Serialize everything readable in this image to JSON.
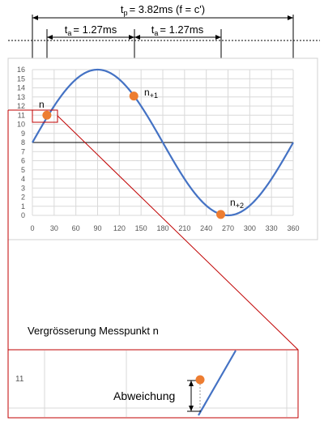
{
  "dimensions": {
    "period": {
      "symbol": "t",
      "subscript": "p",
      "value": "= 3.82ms (f = c')"
    },
    "interval_1": {
      "symbol": "t",
      "subscript": "a",
      "value": "= 1.27ms"
    },
    "interval_2": {
      "symbol": "t",
      "subscript": "a",
      "value": "= 1.27ms"
    }
  },
  "points": {
    "n": {
      "base": "n",
      "subscript": "",
      "x_deg": 20,
      "y": 11
    },
    "n1": {
      "base": "n",
      "subscript": "+1",
      "x_deg": 140,
      "y": 13.1
    },
    "n2": {
      "base": "n",
      "subscript": "+2",
      "x_deg": 260,
      "y": 0.1
    }
  },
  "chart_data": {
    "type": "line",
    "function": "y = 8 + 8*sin(x in degrees)",
    "x_range": [
      0,
      360
    ],
    "y_range": [
      0,
      16
    ],
    "x_ticks": [
      "0",
      "30",
      "60",
      "90",
      "120",
      "150",
      "180",
      "210",
      "240",
      "270",
      "300",
      "330",
      "360"
    ],
    "y_ticks": [
      "0",
      "1",
      "2",
      "3",
      "4",
      "5",
      "6",
      "7",
      "8",
      "9",
      "10",
      "11",
      "12",
      "13",
      "14",
      "15",
      "16"
    ],
    "grid": true,
    "baseline_y": 8
  },
  "zoom": {
    "title": "Vergrösserung Messpunkt n",
    "y_label": "11",
    "deviation_label": "Abweichung"
  },
  "colors": {
    "curve": "#4472c4",
    "marker": "#ed7d31",
    "highlight": "#c00000",
    "grid": "#d9d9d9"
  }
}
